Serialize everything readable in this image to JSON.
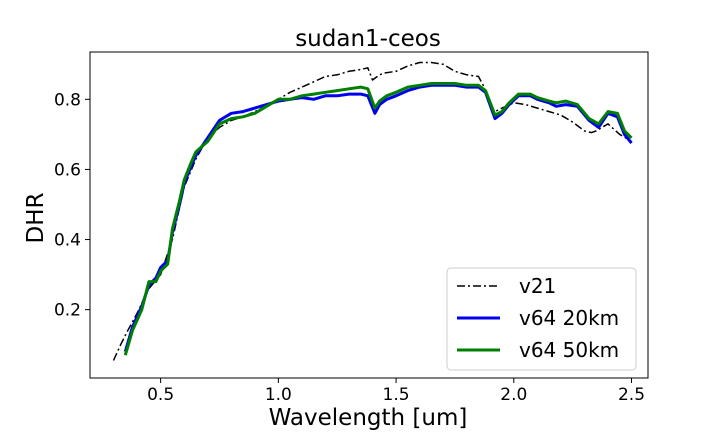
{
  "chart_data": {
    "type": "line",
    "title": "sudan1-ceos",
    "xlabel": "Wavelength [um]",
    "ylabel": "DHR",
    "xlim": [
      0.2,
      2.57
    ],
    "ylim": [
      0.005,
      0.935
    ],
    "xticks": [
      0.5,
      1.0,
      1.5,
      2.0,
      2.5
    ],
    "xtick_labels": [
      "0.5",
      "1.0",
      "1.5",
      "2.0",
      "2.5"
    ],
    "yticks": [
      0.2,
      0.4,
      0.6,
      0.8
    ],
    "ytick_labels": [
      "0.2",
      "0.4",
      "0.6",
      "0.8"
    ],
    "grid": false,
    "legend_position": "lower-right",
    "series": [
      {
        "name": "v21",
        "color": "#000000",
        "style": "dashdot",
        "x": [
          0.3,
          0.33,
          0.36,
          0.4,
          0.45,
          0.5,
          0.55,
          0.6,
          0.65,
          0.7,
          0.75,
          0.8,
          0.85,
          0.9,
          0.95,
          1.0,
          1.05,
          1.1,
          1.15,
          1.2,
          1.25,
          1.3,
          1.35,
          1.38,
          1.4,
          1.43,
          1.45,
          1.5,
          1.55,
          1.6,
          1.65,
          1.7,
          1.75,
          1.8,
          1.85,
          1.87,
          1.9,
          1.92,
          1.95,
          2.0,
          2.05,
          2.1,
          2.15,
          2.2,
          2.25,
          2.3,
          2.33,
          2.35,
          2.4,
          2.45,
          2.5
        ],
        "y": [
          0.055,
          0.1,
          0.14,
          0.19,
          0.26,
          0.3,
          0.4,
          0.55,
          0.63,
          0.69,
          0.72,
          0.74,
          0.75,
          0.765,
          0.78,
          0.8,
          0.82,
          0.835,
          0.85,
          0.865,
          0.87,
          0.88,
          0.885,
          0.89,
          0.855,
          0.87,
          0.875,
          0.88,
          0.895,
          0.905,
          0.905,
          0.9,
          0.88,
          0.87,
          0.865,
          0.84,
          0.78,
          0.765,
          0.775,
          0.79,
          0.785,
          0.775,
          0.765,
          0.755,
          0.735,
          0.71,
          0.705,
          0.71,
          0.73,
          0.7,
          0.68
        ]
      },
      {
        "name": "v64 20km",
        "color": "#0000ee",
        "style": "solid",
        "x": [
          0.35,
          0.38,
          0.42,
          0.45,
          0.48,
          0.5,
          0.53,
          0.55,
          0.58,
          0.6,
          0.63,
          0.65,
          0.7,
          0.75,
          0.8,
          0.85,
          0.9,
          0.95,
          1.0,
          1.05,
          1.1,
          1.15,
          1.2,
          1.25,
          1.3,
          1.35,
          1.38,
          1.41,
          1.43,
          1.46,
          1.5,
          1.55,
          1.6,
          1.65,
          1.7,
          1.75,
          1.8,
          1.85,
          1.88,
          1.92,
          1.95,
          1.98,
          2.02,
          2.07,
          2.1,
          2.15,
          2.18,
          2.22,
          2.27,
          2.32,
          2.36,
          2.4,
          2.44,
          2.47,
          2.5
        ],
        "y": [
          0.08,
          0.15,
          0.21,
          0.27,
          0.29,
          0.32,
          0.34,
          0.42,
          0.5,
          0.56,
          0.61,
          0.64,
          0.69,
          0.74,
          0.76,
          0.765,
          0.775,
          0.785,
          0.795,
          0.8,
          0.805,
          0.8,
          0.81,
          0.81,
          0.815,
          0.815,
          0.81,
          0.76,
          0.785,
          0.8,
          0.81,
          0.825,
          0.835,
          0.84,
          0.84,
          0.84,
          0.835,
          0.835,
          0.82,
          0.745,
          0.76,
          0.785,
          0.81,
          0.81,
          0.8,
          0.79,
          0.78,
          0.785,
          0.78,
          0.74,
          0.72,
          0.76,
          0.75,
          0.7,
          0.675
        ]
      },
      {
        "name": "v64 50km",
        "color": "#008000",
        "style": "solid",
        "x": [
          0.35,
          0.38,
          0.42,
          0.45,
          0.48,
          0.5,
          0.53,
          0.55,
          0.58,
          0.6,
          0.63,
          0.65,
          0.7,
          0.75,
          0.8,
          0.85,
          0.9,
          0.95,
          1.0,
          1.05,
          1.1,
          1.15,
          1.2,
          1.25,
          1.3,
          1.35,
          1.38,
          1.41,
          1.43,
          1.46,
          1.5,
          1.55,
          1.6,
          1.65,
          1.7,
          1.75,
          1.8,
          1.85,
          1.88,
          1.92,
          1.95,
          1.98,
          2.02,
          2.07,
          2.1,
          2.15,
          2.18,
          2.22,
          2.27,
          2.32,
          2.36,
          2.4,
          2.44,
          2.47,
          2.5
        ],
        "y": [
          0.07,
          0.14,
          0.2,
          0.28,
          0.28,
          0.31,
          0.33,
          0.43,
          0.51,
          0.57,
          0.62,
          0.65,
          0.68,
          0.73,
          0.745,
          0.75,
          0.76,
          0.78,
          0.8,
          0.8,
          0.81,
          0.815,
          0.82,
          0.825,
          0.83,
          0.835,
          0.83,
          0.775,
          0.795,
          0.81,
          0.82,
          0.835,
          0.84,
          0.845,
          0.845,
          0.845,
          0.84,
          0.84,
          0.825,
          0.755,
          0.765,
          0.79,
          0.815,
          0.815,
          0.805,
          0.795,
          0.79,
          0.795,
          0.785,
          0.745,
          0.73,
          0.765,
          0.76,
          0.71,
          0.69
        ]
      }
    ]
  }
}
